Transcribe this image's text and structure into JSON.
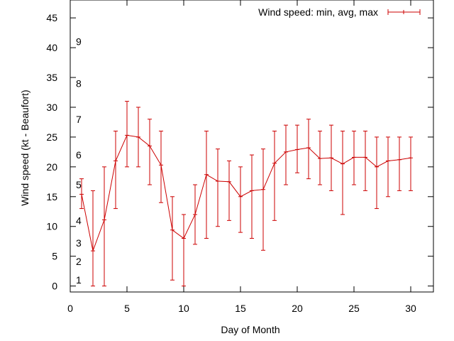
{
  "chart_data": {
    "type": "line",
    "title": "",
    "xlabel": "Day of Month",
    "ylabel": "Wind speed (kt - Beaufort)",
    "xlim": [
      0,
      32
    ],
    "ylim": [
      -1,
      48
    ],
    "xticks": [
      0,
      5,
      10,
      15,
      20,
      25,
      30
    ],
    "yticks": [
      0,
      5,
      10,
      15,
      20,
      25,
      30,
      35,
      40,
      45
    ],
    "grid": false,
    "legend_position": "top-right",
    "beaufort_labels": [
      {
        "label": "1",
        "y": 1.0
      },
      {
        "label": "2",
        "y": 4.1
      },
      {
        "label": "3",
        "y": 7.2
      },
      {
        "label": "4",
        "y": 11.0
      },
      {
        "label": "5",
        "y": 17.0
      },
      {
        "label": "6",
        "y": 22.0
      },
      {
        "label": "7",
        "y": 28.0
      },
      {
        "label": "8",
        "y": 34.0
      },
      {
        "label": "9",
        "y": 41.0
      }
    ],
    "series": [
      {
        "name": "Wind speed: min, avg, max",
        "color": "#cc0000",
        "x": [
          1,
          2,
          3,
          4,
          5,
          6,
          7,
          8,
          9,
          10,
          11,
          12,
          13,
          14,
          15,
          16,
          17,
          18,
          19,
          20,
          21,
          22,
          23,
          24,
          25,
          26,
          27,
          28,
          29,
          30
        ],
        "avg": [
          15.4,
          5.9,
          11.1,
          21.0,
          25.3,
          25.0,
          23.5,
          20.3,
          9.4,
          8.0,
          12.0,
          18.7,
          17.6,
          17.5,
          15.0,
          16.0,
          16.2,
          20.6,
          22.5,
          22.9,
          23.2,
          21.4,
          21.5,
          20.5,
          21.6,
          21.6,
          20.0,
          21.0,
          21.2,
          21.5
        ],
        "min": [
          13,
          0,
          0,
          13,
          20,
          20,
          17,
          14,
          1,
          0,
          7,
          8,
          10,
          11,
          9,
          8,
          6,
          11,
          17,
          19,
          18,
          17,
          16,
          12,
          17,
          16,
          13,
          15,
          16,
          16
        ],
        "max": [
          18,
          16,
          20,
          26,
          31,
          30,
          28,
          26,
          15,
          12,
          17,
          26,
          23,
          21,
          20,
          22,
          23,
          26,
          27,
          27,
          28,
          26,
          27,
          26,
          26,
          26,
          25,
          25,
          25,
          25
        ]
      }
    ]
  }
}
